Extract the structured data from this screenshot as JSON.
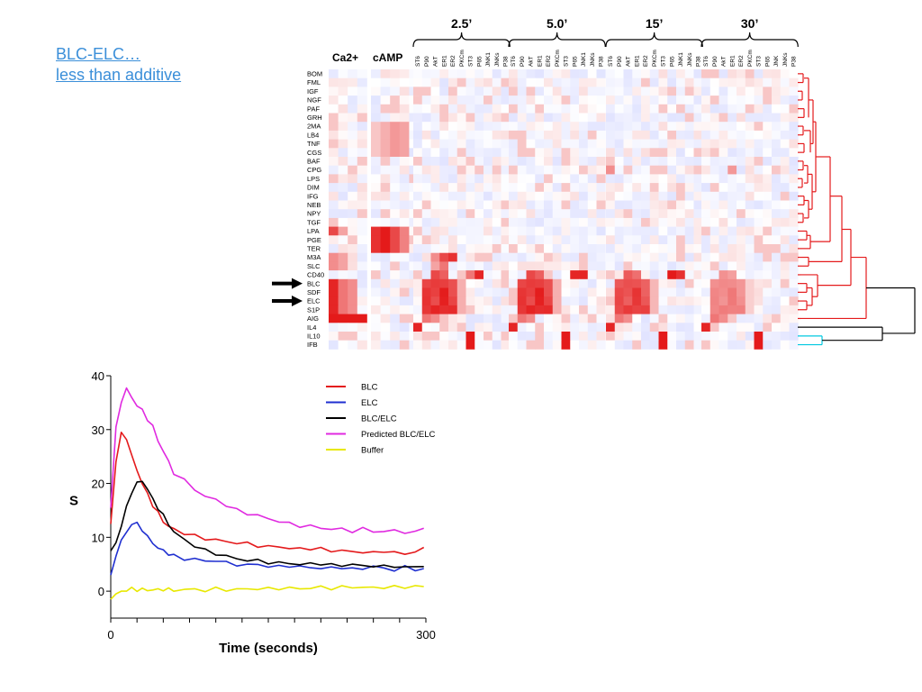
{
  "slide": {
    "line1": "BLC-ELC…",
    "line2": "less than additive"
  },
  "heatmap": {
    "group_labels": [
      "Ca2+",
      "cAMP"
    ],
    "time_labels": [
      "2.5’",
      "5.0’",
      "15’",
      "30’"
    ],
    "time_columns": [
      [
        "ST6",
        "P90",
        "AkT",
        "ER1",
        "ER2",
        "PKCm",
        "ST3",
        "P65",
        "JNK1",
        "JNKs",
        "P38"
      ],
      [
        "ST6",
        "P90",
        "AkT",
        "ER1",
        "ER2",
        "PKCm",
        "ST3",
        "P65",
        "JNK1",
        "JNKs",
        "P38"
      ],
      [
        "ST6",
        "P90",
        "AkT",
        "ER1",
        "ER2",
        "PKCm",
        "ST3",
        "P65",
        "JNK1",
        "JNKs",
        "P38"
      ],
      [
        "ST6",
        "P90",
        "AkT",
        "ER1",
        "ER2",
        "PKCm",
        "ST3",
        "P65",
        "JNK",
        "JNKs",
        "P38"
      ]
    ],
    "rows": [
      "BOM",
      "FML",
      "IGF",
      "NGF",
      "PAF",
      "GRH",
      "2MA",
      "LB4",
      "TNF",
      "CGS",
      "BAF",
      "CPG",
      "LPS",
      "DIM",
      "IFG",
      "NEB",
      "NPY",
      "TGF",
      "LPA",
      "PGE",
      "TER",
      "M3A",
      "SLC",
      "CD40",
      "BLC",
      "SDF",
      "ELC",
      "S1P",
      "AIG",
      "IL4",
      "IL10",
      "IFB"
    ],
    "arrow_rows": [
      "BLC",
      "ELC"
    ],
    "colors": {
      "high": "#e41a1c",
      "low": "#3b4cc0",
      "tree_main": "#e41a1c",
      "tree_root": "#000000",
      "tree_il10_ifb": "#00c8e0"
    }
  },
  "chart_data": {
    "type": "line",
    "title": "",
    "xlabel": "Time (seconds)",
    "ylabel": "S",
    "xlim": [
      0,
      300
    ],
    "ylim": [
      -5,
      40
    ],
    "x_ticks": [
      0,
      300
    ],
    "y_ticks": [
      0,
      10,
      20,
      30,
      40
    ],
    "x": [
      0,
      5,
      10,
      15,
      20,
      25,
      30,
      35,
      40,
      45,
      50,
      55,
      60,
      70,
      80,
      90,
      100,
      110,
      120,
      130,
      140,
      150,
      160,
      170,
      180,
      190,
      200,
      210,
      220,
      230,
      240,
      250,
      260,
      270,
      280,
      290,
      298
    ],
    "legend_position": "top-right",
    "series": [
      {
        "name": "BLC",
        "color": "#e41a1c",
        "values": [
          12.5,
          24,
          29.5,
          28.5,
          25,
          22.5,
          20,
          18,
          16,
          14.5,
          13,
          12,
          11.5,
          10.8,
          10.2,
          9.8,
          9.5,
          9.2,
          9,
          8.8,
          8.5,
          8.2,
          8.3,
          8,
          7.8,
          8,
          7.8,
          7.5,
          7.6,
          7.2,
          7.4,
          7,
          7.5,
          7.2,
          6.8,
          7.5,
          7.8
        ]
      },
      {
        "name": "ELC",
        "color": "#1f2fd0",
        "values": [
          3,
          6.5,
          9.5,
          11,
          12.5,
          12.5,
          11.5,
          10,
          9,
          8,
          7.5,
          7,
          6.5,
          6,
          6,
          5.5,
          5.8,
          5.2,
          5,
          4.8,
          5,
          4.6,
          4.5,
          4.8,
          4.4,
          4.5,
          4.2,
          4.3,
          4.5,
          4,
          4.3,
          4.6,
          4.2,
          4,
          4.4,
          4.1,
          4
        ]
      },
      {
        "name": "BLC/ELC",
        "color": "#000000",
        "values": [
          7.5,
          9,
          12,
          15.5,
          18.5,
          20,
          20.5,
          19,
          17,
          15.5,
          14,
          12.5,
          11,
          9.5,
          8.5,
          7.5,
          7,
          6.5,
          6,
          5.8,
          5.6,
          5.4,
          5.2,
          5.2,
          5,
          5,
          5.2,
          4.8,
          4.8,
          5,
          4.6,
          4.8,
          4.5,
          4.7,
          4.4,
          4.5,
          4.8
        ]
      },
      {
        "name": "Predicted BLC/ELC",
        "color": "#e02ae0",
        "values": [
          15.5,
          30.5,
          35,
          37.5,
          36,
          34.5,
          33.5,
          32,
          30.5,
          28,
          26,
          24,
          22,
          20.5,
          19,
          17.5,
          17,
          16,
          15,
          14.5,
          14,
          13.5,
          13,
          12.5,
          12.2,
          12,
          11.8,
          11.5,
          11.5,
          11.2,
          11.5,
          11.2,
          11,
          11.3,
          11,
          10.8,
          12
        ]
      },
      {
        "name": "Buffer",
        "color": "#e8e800",
        "values": [
          -1.5,
          -0.5,
          0,
          0.2,
          0.4,
          0.3,
          0.3,
          0.2,
          0.3,
          0.2,
          0.4,
          0.3,
          0.2,
          0.3,
          0.3,
          0.2,
          0.4,
          0.3,
          0.3,
          0.4,
          0.5,
          0.4,
          0.6,
          0.5,
          0.5,
          0.6,
          0.7,
          0.6,
          0.7,
          0.8,
          0.7,
          0.6,
          0.8,
          0.7,
          0.8,
          0.9,
          0.8
        ]
      }
    ]
  }
}
